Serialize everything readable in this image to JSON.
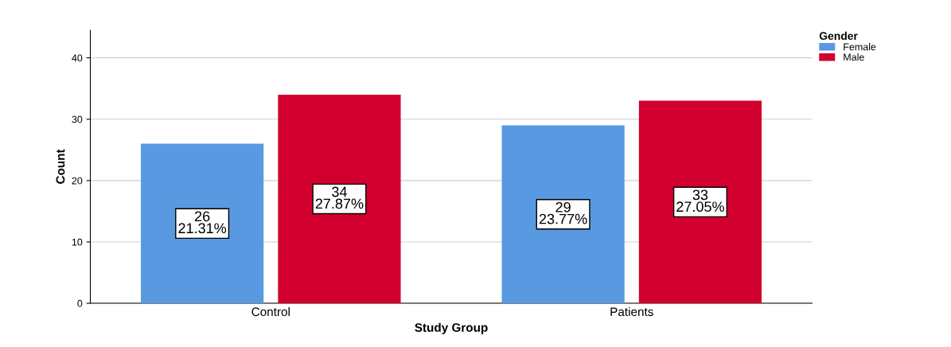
{
  "chart_data": {
    "type": "bar",
    "xlabel": "Study Group",
    "ylabel": "Count",
    "legend_title": "Gender",
    "categories": [
      "Control",
      "Patients"
    ],
    "series": [
      {
        "name": "Female",
        "color": "#5899e2",
        "values": [
          26,
          29
        ],
        "value_labels": [
          "26\n21.31%",
          "29\n23.77%"
        ]
      },
      {
        "name": "Male",
        "color": "#d2002e",
        "values": [
          34,
          33
        ],
        "value_labels": [
          "34\n27.87%",
          "33\n27.05%"
        ]
      }
    ],
    "ylim": [
      0,
      44.5
    ],
    "yticks": [
      0,
      10,
      20,
      30,
      40
    ],
    "grid": "y",
    "legend": "top right"
  }
}
